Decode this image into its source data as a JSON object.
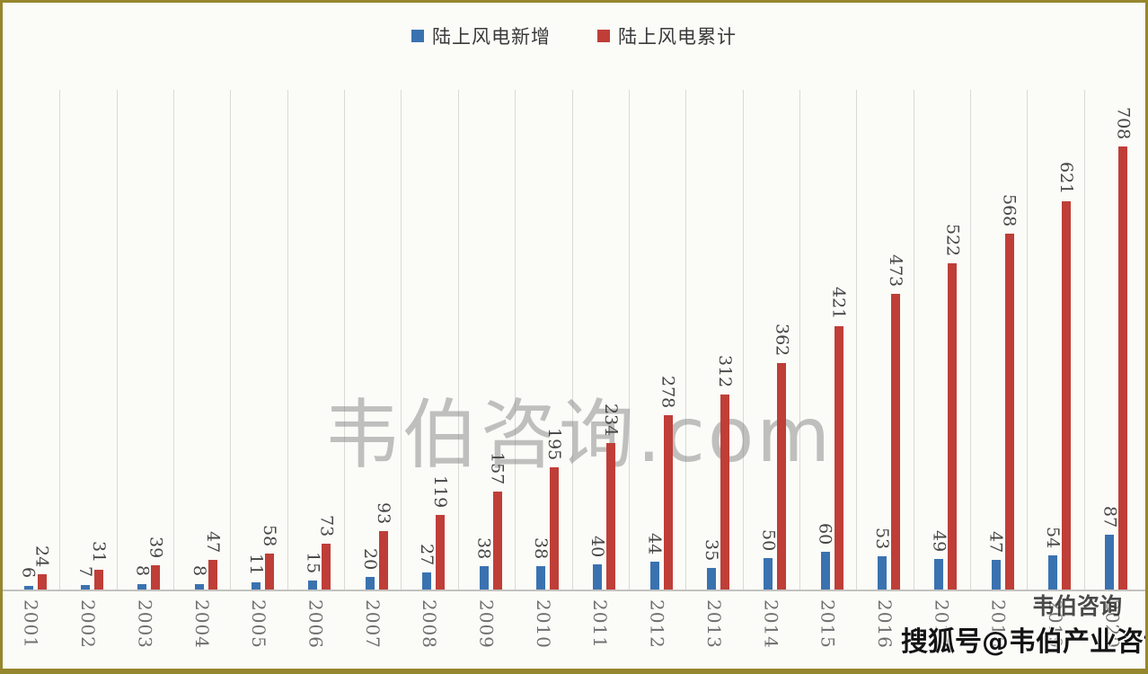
{
  "legend": {
    "items": [
      {
        "label": "陆上风电新增",
        "color": "#3a72b0"
      },
      {
        "label": "陆上风电累计",
        "color": "#bf3e38"
      }
    ]
  },
  "watermarks": {
    "center": "韦伯咨询.com",
    "corner_main": "搜狐号@韦伯产业咨询",
    "corner_ghost": "韦伯咨询"
  },
  "colors": {
    "new_series": "#3a72b0",
    "cumulative_series": "#bf3e38",
    "frame_border": "#96862e",
    "gridline": "#d9d9d6",
    "watermark_gray": "#6f6f6f"
  },
  "chart_data": {
    "type": "bar",
    "title": "",
    "xlabel": "",
    "ylabel": "",
    "categories": [
      "2001",
      "2002",
      "2003",
      "2004",
      "2005",
      "2006",
      "2007",
      "2008",
      "2009",
      "2010",
      "2011",
      "2012",
      "2013",
      "2014",
      "2015",
      "2016",
      "2017",
      "2018",
      "2019",
      "2020"
    ],
    "series": [
      {
        "name": "陆上风电新增",
        "color": "#3a72b0",
        "values": [
          6,
          7,
          8,
          8,
          11,
          15,
          20,
          27,
          38,
          38,
          40,
          44,
          35,
          50,
          60,
          53,
          49,
          47,
          54,
          87
        ]
      },
      {
        "name": "陆上风电累计",
        "color": "#bf3e38",
        "values": [
          24,
          31,
          39,
          47,
          58,
          73,
          93,
          119,
          157,
          195,
          234,
          278,
          312,
          362,
          421,
          473,
          522,
          568,
          621,
          708
        ]
      }
    ],
    "ylim": [
      0,
      760
    ],
    "grid": "vertical category separators only",
    "legend_position": "top-center",
    "data_labels": "values above bars, rotated 90° (read top-to-bottom)",
    "x_tick_labels": "years rotated 90°"
  }
}
